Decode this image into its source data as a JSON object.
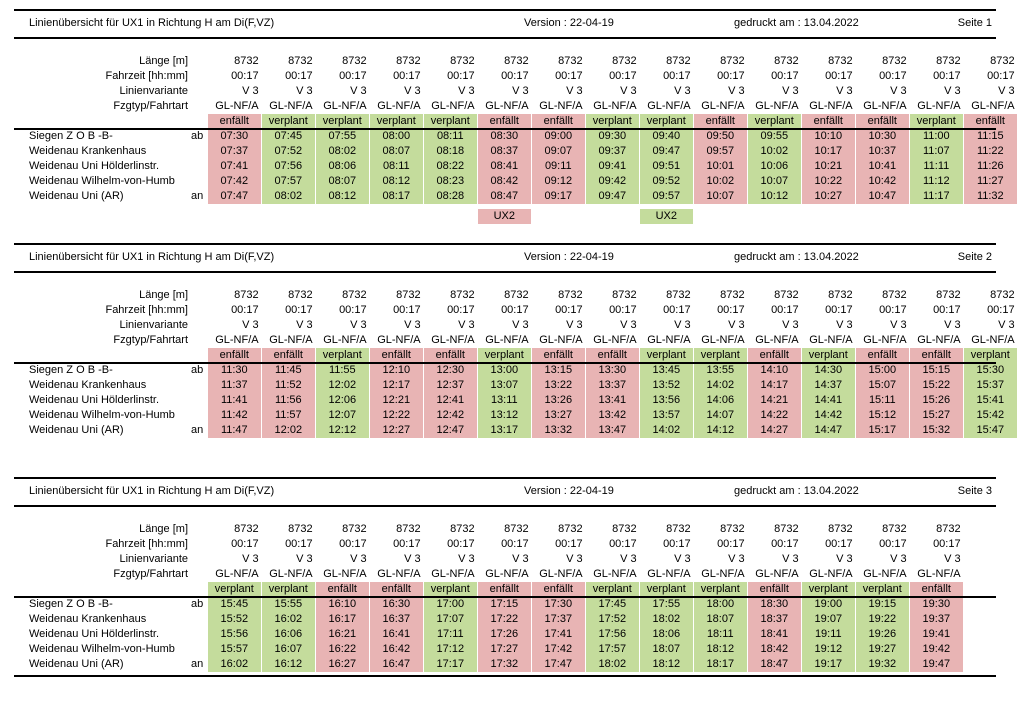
{
  "pages": [
    {
      "title": "Linienübersicht für UX1 in Richtung H am Di(F,VZ)",
      "version": "Version : 22-04-19",
      "printed": "gedruckt am : 13.04.2022",
      "page_no": "Seite   1",
      "row_labels": [
        "Länge [m]",
        "Fahrzeit [hh:mm]",
        "Linienvariante",
        "Fzgtyp/Fahrtart"
      ],
      "lengths": [
        "8732",
        "8732",
        "8732",
        "8732",
        "8732",
        "8732",
        "8732",
        "8732",
        "8732",
        "8732",
        "8732",
        "8732",
        "8732",
        "8732",
        "8732"
      ],
      "durations": [
        "00:17",
        "00:17",
        "00:17",
        "00:17",
        "00:17",
        "00:17",
        "00:17",
        "00:17",
        "00:17",
        "00:17",
        "00:17",
        "00:17",
        "00:17",
        "00:17",
        "00:17"
      ],
      "variants": [
        "V 3",
        "V 3",
        "V 3",
        "V 3",
        "V 3",
        "V 3",
        "V 3",
        "V 3",
        "V 3",
        "V 3",
        "V 3",
        "V 3",
        "V 3",
        "V 3",
        "V 3"
      ],
      "vehicles": [
        "GL-NF/A",
        "GL-NF/A",
        "GL-NF/A",
        "GL-NF/A",
        "GL-NF/A",
        "GL-NF/A",
        "GL-NF/A",
        "GL-NF/A",
        "GL-NF/A",
        "GL-NF/A",
        "GL-NF/A",
        "GL-NF/A",
        "GL-NF/A",
        "GL-NF/A",
        "GL-NF/A"
      ],
      "statuses": [
        "enfällt",
        "verplant",
        "verplant",
        "verplant",
        "verplant",
        "enfällt",
        "enfällt",
        "verplant",
        "verplant",
        "enfällt",
        "verplant",
        "enfällt",
        "enfällt",
        "verplant",
        "enfällt"
      ],
      "stops": [
        {
          "name": "Siegen Z O B -B-",
          "mark": "ab",
          "times": [
            "07:30",
            "07:45",
            "07:55",
            "08:00",
            "08:11",
            "08:30",
            "09:00",
            "09:30",
            "09:40",
            "09:50",
            "09:55",
            "10:10",
            "10:30",
            "11:00",
            "11:15"
          ]
        },
        {
          "name": "Weidenau Krankenhaus",
          "mark": "",
          "times": [
            "07:37",
            "07:52",
            "08:02",
            "08:07",
            "08:18",
            "08:37",
            "09:07",
            "09:37",
            "09:47",
            "09:57",
            "10:02",
            "10:17",
            "10:37",
            "11:07",
            "11:22"
          ]
        },
        {
          "name": "Weidenau Uni Hölderlinstr.",
          "mark": "",
          "times": [
            "07:41",
            "07:56",
            "08:06",
            "08:11",
            "08:22",
            "08:41",
            "09:11",
            "09:41",
            "09:51",
            "10:01",
            "10:06",
            "10:21",
            "10:41",
            "11:11",
            "11:26"
          ]
        },
        {
          "name": "Weidenau Wilhelm-von-Humb",
          "mark": "",
          "times": [
            "07:42",
            "07:57",
            "08:07",
            "08:12",
            "08:23",
            "08:42",
            "09:12",
            "09:42",
            "09:52",
            "10:02",
            "10:07",
            "10:22",
            "10:42",
            "11:12",
            "11:27"
          ]
        },
        {
          "name": "Weidenau Uni (AR)",
          "mark": "an",
          "times": [
            "07:47",
            "08:02",
            "08:12",
            "08:17",
            "08:28",
            "08:47",
            "09:17",
            "09:47",
            "09:57",
            "10:07",
            "10:12",
            "10:27",
            "10:47",
            "11:17",
            "11:32"
          ]
        }
      ],
      "footer_tags": [
        {
          "col": 5,
          "label": "UX2",
          "color": "red"
        },
        {
          "col": 8,
          "label": "UX2",
          "color": "green"
        }
      ]
    },
    {
      "title": "Linienübersicht für UX1 in Richtung H am Di(F,VZ)",
      "version": "Version : 22-04-19",
      "printed": "gedruckt am : 13.04.2022",
      "page_no": "Seite   2",
      "row_labels": [
        "Länge [m]",
        "Fahrzeit [hh:mm]",
        "Linienvariante",
        "Fzgtyp/Fahrtart"
      ],
      "lengths": [
        "8732",
        "8732",
        "8732",
        "8732",
        "8732",
        "8732",
        "8732",
        "8732",
        "8732",
        "8732",
        "8732",
        "8732",
        "8732",
        "8732",
        "8732"
      ],
      "durations": [
        "00:17",
        "00:17",
        "00:17",
        "00:17",
        "00:17",
        "00:17",
        "00:17",
        "00:17",
        "00:17",
        "00:17",
        "00:17",
        "00:17",
        "00:17",
        "00:17",
        "00:17"
      ],
      "variants": [
        "V 3",
        "V 3",
        "V 3",
        "V 3",
        "V 3",
        "V 3",
        "V 3",
        "V 3",
        "V 3",
        "V 3",
        "V 3",
        "V 3",
        "V 3",
        "V 3",
        "V 3"
      ],
      "vehicles": [
        "GL-NF/A",
        "GL-NF/A",
        "GL-NF/A",
        "GL-NF/A",
        "GL-NF/A",
        "GL-NF/A",
        "GL-NF/A",
        "GL-NF/A",
        "GL-NF/A",
        "GL-NF/A",
        "GL-NF/A",
        "GL-NF/A",
        "GL-NF/A",
        "GL-NF/A",
        "GL-NF/A"
      ],
      "statuses": [
        "enfällt",
        "enfällt",
        "verplant",
        "enfällt",
        "enfällt",
        "verplant",
        "enfällt",
        "enfällt",
        "verplant",
        "verplant",
        "enfällt",
        "verplant",
        "enfällt",
        "enfällt",
        "verplant"
      ],
      "stops": [
        {
          "name": "Siegen Z O B -B-",
          "mark": "ab",
          "times": [
            "11:30",
            "11:45",
            "11:55",
            "12:10",
            "12:30",
            "13:00",
            "13:15",
            "13:30",
            "13:45",
            "13:55",
            "14:10",
            "14:30",
            "15:00",
            "15:15",
            "15:30"
          ]
        },
        {
          "name": "Weidenau Krankenhaus",
          "mark": "",
          "times": [
            "11:37",
            "11:52",
            "12:02",
            "12:17",
            "12:37",
            "13:07",
            "13:22",
            "13:37",
            "13:52",
            "14:02",
            "14:17",
            "14:37",
            "15:07",
            "15:22",
            "15:37"
          ]
        },
        {
          "name": "Weidenau Uni Hölderlinstr.",
          "mark": "",
          "times": [
            "11:41",
            "11:56",
            "12:06",
            "12:21",
            "12:41",
            "13:11",
            "13:26",
            "13:41",
            "13:56",
            "14:06",
            "14:21",
            "14:41",
            "15:11",
            "15:26",
            "15:41"
          ]
        },
        {
          "name": "Weidenau Wilhelm-von-Humb",
          "mark": "",
          "times": [
            "11:42",
            "11:57",
            "12:07",
            "12:22",
            "12:42",
            "13:12",
            "13:27",
            "13:42",
            "13:57",
            "14:07",
            "14:22",
            "14:42",
            "15:12",
            "15:27",
            "15:42"
          ]
        },
        {
          "name": "Weidenau Uni (AR)",
          "mark": "an",
          "times": [
            "11:47",
            "12:02",
            "12:12",
            "12:27",
            "12:47",
            "13:17",
            "13:32",
            "13:47",
            "14:02",
            "14:12",
            "14:27",
            "14:47",
            "15:17",
            "15:32",
            "15:47"
          ]
        }
      ],
      "footer_tags": []
    },
    {
      "title": "Linienübersicht für UX1 in Richtung H am Di(F,VZ)",
      "version": "Version : 22-04-19",
      "printed": "gedruckt am : 13.04.2022",
      "page_no": "Seite   3",
      "row_labels": [
        "Länge [m]",
        "Fahrzeit [hh:mm]",
        "Linienvariante",
        "Fzgtyp/Fahrtart"
      ],
      "lengths": [
        "8732",
        "8732",
        "8732",
        "8732",
        "8732",
        "8732",
        "8732",
        "8732",
        "8732",
        "8732",
        "8732",
        "8732",
        "8732",
        "8732"
      ],
      "durations": [
        "00:17",
        "00:17",
        "00:17",
        "00:17",
        "00:17",
        "00:17",
        "00:17",
        "00:17",
        "00:17",
        "00:17",
        "00:17",
        "00:17",
        "00:17",
        "00:17"
      ],
      "variants": [
        "V 3",
        "V 3",
        "V 3",
        "V 3",
        "V 3",
        "V 3",
        "V 3",
        "V 3",
        "V 3",
        "V 3",
        "V 3",
        "V 3",
        "V 3",
        "V 3"
      ],
      "vehicles": [
        "GL-NF/A",
        "GL-NF/A",
        "GL-NF/A",
        "GL-NF/A",
        "GL-NF/A",
        "GL-NF/A",
        "GL-NF/A",
        "GL-NF/A",
        "GL-NF/A",
        "GL-NF/A",
        "GL-NF/A",
        "GL-NF/A",
        "GL-NF/A",
        "GL-NF/A"
      ],
      "statuses": [
        "verplant",
        "verplant",
        "enfällt",
        "enfällt",
        "verplant",
        "enfällt",
        "enfällt",
        "verplant",
        "verplant",
        "verplant",
        "enfällt",
        "verplant",
        "verplant",
        "enfällt"
      ],
      "stops": [
        {
          "name": "Siegen Z O B -B-",
          "mark": "ab",
          "times": [
            "15:45",
            "15:55",
            "16:10",
            "16:30",
            "17:00",
            "17:15",
            "17:30",
            "17:45",
            "17:55",
            "18:00",
            "18:30",
            "19:00",
            "19:15",
            "19:30"
          ]
        },
        {
          "name": "Weidenau Krankenhaus",
          "mark": "",
          "times": [
            "15:52",
            "16:02",
            "16:17",
            "16:37",
            "17:07",
            "17:22",
            "17:37",
            "17:52",
            "18:02",
            "18:07",
            "18:37",
            "19:07",
            "19:22",
            "19:37"
          ]
        },
        {
          "name": "Weidenau Uni Hölderlinstr.",
          "mark": "",
          "times": [
            "15:56",
            "16:06",
            "16:21",
            "16:41",
            "17:11",
            "17:26",
            "17:41",
            "17:56",
            "18:06",
            "18:11",
            "18:41",
            "19:11",
            "19:26",
            "19:41"
          ]
        },
        {
          "name": "Weidenau Wilhelm-von-Humb",
          "mark": "",
          "times": [
            "15:57",
            "16:07",
            "16:22",
            "16:42",
            "17:12",
            "17:27",
            "17:42",
            "17:57",
            "18:07",
            "18:12",
            "18:42",
            "19:12",
            "19:27",
            "19:42"
          ]
        },
        {
          "name": "Weidenau Uni (AR)",
          "mark": "an",
          "times": [
            "16:02",
            "16:12",
            "16:27",
            "16:47",
            "17:17",
            "17:32",
            "17:47",
            "18:02",
            "18:12",
            "18:17",
            "18:47",
            "19:17",
            "19:32",
            "19:47"
          ]
        }
      ],
      "footer_tags": []
    }
  ],
  "colors": {
    "red": "#e8b4b4",
    "green": "#c4dc9c"
  }
}
